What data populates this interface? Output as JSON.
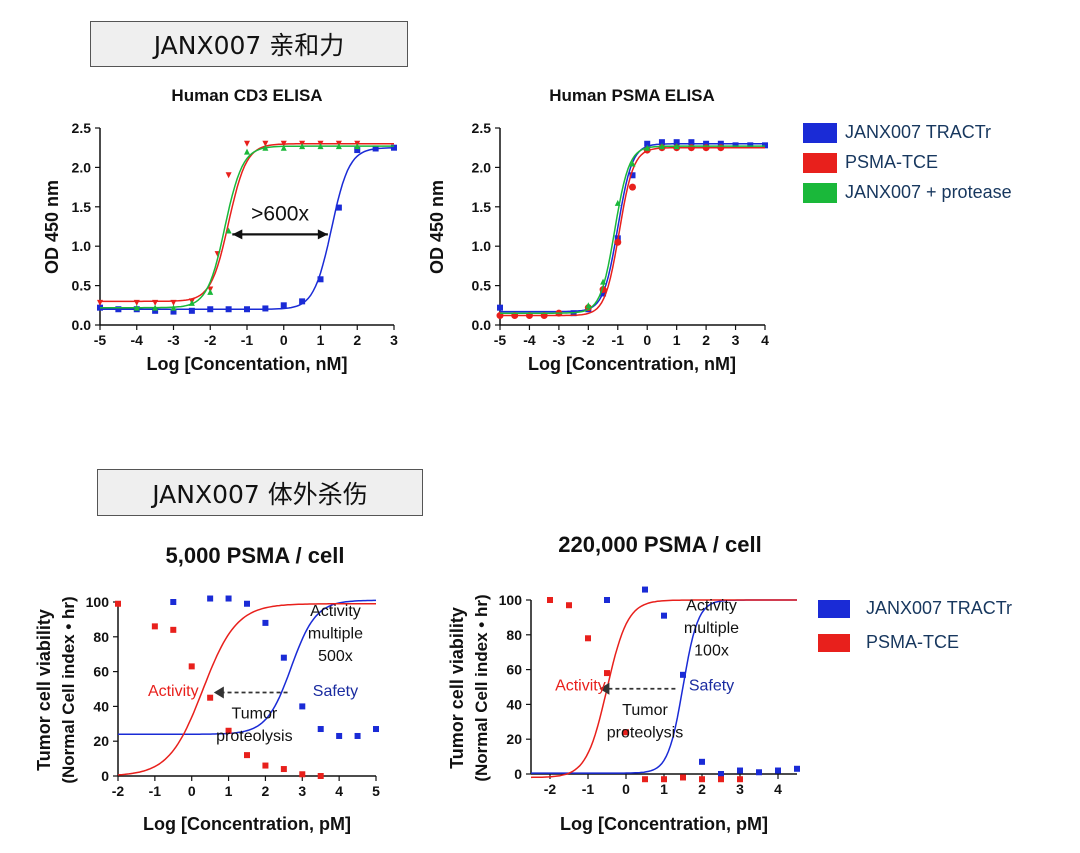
{
  "sections": [
    {
      "label": "JANX007 亲和力"
    },
    {
      "label": "JANX007 体外杀伤"
    }
  ],
  "colors": {
    "blue": "#1a2bd6",
    "red": "#e8201c",
    "green": "#1ab83a",
    "navy": "#1a2ba0"
  },
  "legend_top": [
    {
      "label": "JANX007 TRACTr",
      "color": "#1a2bd6"
    },
    {
      "label": "PSMA-TCE",
      "color": "#e8201c"
    },
    {
      "label": "JANX007 + protease",
      "color": "#1ab83a"
    }
  ],
  "legend_bottom": [
    {
      "label": "JANX007 TRACTr",
      "color": "#1a2bd6"
    },
    {
      "label": "PSMA-TCE",
      "color": "#e8201c"
    }
  ],
  "chart_data": [
    {
      "type": "line",
      "title": "Human CD3 ELISA",
      "xlabel": "Log [Concentation, nM]",
      "ylabel": "OD 450 nm",
      "xlim": [
        -5,
        3
      ],
      "ylim": [
        0,
        2.5
      ],
      "xticks": [
        "-5",
        "-4",
        "-3",
        "-2",
        "-1",
        "0",
        "1",
        "2",
        "3"
      ],
      "yticks": [
        "0.0",
        "0.5",
        "1.0",
        "1.5",
        "2.0",
        "2.5"
      ],
      "annotations": [
        {
          "text": ">600x",
          "x_from": -1.4,
          "x_to": 1.2,
          "y": 1.15
        }
      ],
      "series": [
        {
          "name": "JANX007 TRACTr",
          "color": "#1a2bd6",
          "marker": "square",
          "x": [
            -5,
            -4.5,
            -4,
            -3.5,
            -3,
            -2.5,
            -2,
            -1.5,
            -1,
            -0.5,
            0,
            0.5,
            1,
            1.5,
            2,
            2.5,
            3
          ],
          "y": [
            0.22,
            0.2,
            0.2,
            0.18,
            0.17,
            0.18,
            0.2,
            0.2,
            0.2,
            0.21,
            0.25,
            0.3,
            0.58,
            1.49,
            2.22,
            2.24,
            2.25
          ],
          "fit": {
            "bottom": 0.2,
            "top": 2.25,
            "ec50": 1.3,
            "hill": 1.8
          }
        },
        {
          "name": "PSMA-TCE",
          "color": "#e8201c",
          "marker": "triangle-down",
          "x": [
            -5,
            -4,
            -3.5,
            -3,
            -2.5,
            -2,
            -1.8,
            -1.5,
            -1,
            -0.5,
            0,
            0.5,
            1,
            1.5,
            2
          ],
          "y": [
            0.28,
            0.28,
            0.28,
            0.28,
            0.3,
            0.45,
            0.9,
            1.9,
            2.3,
            2.3,
            2.3,
            2.3,
            2.3,
            2.3,
            2.3
          ],
          "fit": {
            "bottom": 0.3,
            "top": 2.3,
            "ec50": -1.5,
            "hill": 1.8
          }
        },
        {
          "name": "JANX007 + protease",
          "color": "#1ab83a",
          "marker": "triangle-up",
          "x": [
            -4,
            -3.5,
            -3,
            -2.5,
            -2,
            -1.5,
            -1,
            -0.5,
            0,
            0.5,
            1,
            1.5,
            2
          ],
          "y": [
            0.22,
            0.22,
            0.22,
            0.28,
            0.42,
            1.2,
            2.2,
            2.25,
            2.25,
            2.27,
            2.27,
            2.27,
            2.27
          ],
          "fit": {
            "bottom": 0.22,
            "top": 2.27,
            "ec50": -1.6,
            "hill": 1.8
          }
        }
      ]
    },
    {
      "type": "line",
      "title": "Human PSMA ELISA",
      "xlabel": "Log [Concentration, nM]",
      "ylabel": "OD 450 nm",
      "xlim": [
        -5,
        4
      ],
      "ylim": [
        0,
        2.5
      ],
      "xticks": [
        "-5",
        "-4",
        "-3",
        "-2",
        "-1",
        "0",
        "1",
        "2",
        "3",
        "4"
      ],
      "yticks": [
        "0.0",
        "0.5",
        "1.0",
        "1.5",
        "2.0",
        "2.5"
      ],
      "series": [
        {
          "name": "JANX007 TRACTr",
          "color": "#1a2bd6",
          "marker": "square",
          "x": [
            -5,
            -2.5,
            -2,
            -1.5,
            -1,
            -0.5,
            0,
            0.5,
            1,
            1.5,
            2,
            2.5,
            3,
            3.5,
            4
          ],
          "y": [
            0.22,
            0.15,
            0.2,
            0.4,
            1.1,
            1.9,
            2.3,
            2.32,
            2.32,
            2.32,
            2.3,
            2.3,
            2.28,
            2.28,
            2.28
          ],
          "fit": {
            "bottom": 0.17,
            "top": 2.3,
            "ec50": -1.0,
            "hill": 1.8
          }
        },
        {
          "name": "PSMA-TCE",
          "color": "#e8201c",
          "marker": "circle",
          "x": [
            -5,
            -4.5,
            -4,
            -3.5,
            -3,
            -2,
            -1.5,
            -1,
            -0.5,
            0,
            0.5,
            1,
            1.5,
            2,
            2.5
          ],
          "y": [
            0.12,
            0.12,
            0.12,
            0.12,
            0.15,
            0.22,
            0.45,
            1.05,
            1.75,
            2.22,
            2.25,
            2.25,
            2.25,
            2.25,
            2.25
          ],
          "fit": {
            "bottom": 0.12,
            "top": 2.25,
            "ec50": -0.95,
            "hill": 1.8
          }
        },
        {
          "name": "JANX007 + protease",
          "color": "#1ab83a",
          "marker": "triangle-up",
          "x": [
            -2,
            -1.5,
            -1,
            -0.5,
            0,
            0.5,
            1
          ],
          "y": [
            0.25,
            0.55,
            1.55,
            2.05,
            2.25,
            2.27,
            2.27
          ],
          "fit": {
            "bottom": 0.15,
            "top": 2.27,
            "ec50": -1.1,
            "hill": 1.8
          }
        }
      ]
    },
    {
      "type": "line",
      "title": "5,000 PSMA / cell",
      "xlabel": "Log [Concentration, pM]",
      "ylabel": "Tumor cell viability",
      "ylabel2": "(Normal Cell index • hr)",
      "xlim": [
        -2,
        5
      ],
      "ylim": [
        0,
        100
      ],
      "xticks": [
        "-2",
        "-1",
        "0",
        "1",
        "2",
        "3",
        "4",
        "5"
      ],
      "yticks": [
        "0",
        "20",
        "40",
        "60",
        "80",
        "100"
      ],
      "annotations": [
        {
          "text": "Activity",
          "color": "#e8201c",
          "x": -0.5,
          "y": 46
        },
        {
          "text": "Safety",
          "color": "#1a2ba0",
          "x": 3.9,
          "y": 46
        },
        {
          "text": "Activity",
          "color": "#111",
          "x": 3.9,
          "y": 92
        },
        {
          "text": "multiple",
          "color": "#111",
          "x": 3.9,
          "y": 79
        },
        {
          "text": "500x",
          "color": "#111",
          "x": 3.9,
          "y": 66
        },
        {
          "text": "Tumor",
          "color": "#111",
          "x": 1.7,
          "y": 33
        },
        {
          "text": "proteolysis",
          "color": "#111",
          "x": 1.7,
          "y": 20
        }
      ],
      "arrow": {
        "x_from": 2.6,
        "x_to": 0.6,
        "y": 48
      },
      "series": [
        {
          "name": "JANX007 TRACTr",
          "color": "#1a2bd6",
          "marker": "square",
          "x": [
            -0.5,
            0.5,
            1,
            1.5,
            2,
            2.5,
            3,
            3.5,
            4,
            4.5,
            5
          ],
          "y": [
            100,
            102,
            102,
            99,
            88,
            68,
            40,
            27,
            23,
            23,
            27
          ],
          "fit": {
            "bottom": 24,
            "top": 101,
            "ec50": 2.7,
            "hill": 1.3
          }
        },
        {
          "name": "PSMA-TCE",
          "color": "#e8201c",
          "marker": "square",
          "x": [
            -2,
            -1,
            -0.5,
            0,
            0.5,
            1,
            1.5,
            2,
            2.5,
            3,
            3.5
          ],
          "y": [
            99,
            86,
            84,
            63,
            45,
            26,
            12,
            6,
            4,
            1,
            0
          ],
          "fit": {
            "bottom": 0,
            "top": 99,
            "ec50": 0.3,
            "hill": 0.95
          }
        }
      ]
    },
    {
      "type": "line",
      "title": "220,000 PSMA / cell",
      "xlabel": "Log [Concentration, pM]",
      "ylabel": "Tumor cell viability",
      "ylabel2": "(Normal Cell index • hr)",
      "xlim": [
        -2.5,
        4.5
      ],
      "ylim": [
        0,
        100
      ],
      "xticks": [
        "-2",
        "-1",
        "0",
        "1",
        "2",
        "3",
        "4"
      ],
      "yticks": [
        "0",
        "20",
        "40",
        "60",
        "80",
        "100"
      ],
      "annotations": [
        {
          "text": "Activity",
          "color": "#e8201c",
          "x": -1.2,
          "y": 48
        },
        {
          "text": "Safety",
          "color": "#1a2ba0",
          "x": 2.25,
          "y": 48
        },
        {
          "text": "Activity",
          "color": "#111",
          "x": 2.25,
          "y": 94
        },
        {
          "text": "multiple",
          "color": "#111",
          "x": 2.25,
          "y": 81
        },
        {
          "text": "100x",
          "color": "#111",
          "x": 2.25,
          "y": 68
        },
        {
          "text": "Tumor",
          "color": "#111",
          "x": 0.5,
          "y": 34
        },
        {
          "text": "proteolysis",
          "color": "#111",
          "x": 0.5,
          "y": 21
        }
      ],
      "arrow": {
        "x_from": 1.3,
        "x_to": -0.7,
        "y": 49
      },
      "series": [
        {
          "name": "JANX007 TRACTr",
          "color": "#1a2bd6",
          "marker": "square",
          "x": [
            -0.5,
            0.5,
            1,
            1.5,
            2,
            2.5,
            3,
            3.5,
            4,
            4.5
          ],
          "y": [
            100,
            106,
            91,
            57,
            7,
            0,
            2,
            1,
            2,
            3
          ],
          "fit": {
            "bottom": 0.5,
            "top": 100,
            "ec50": 1.5,
            "hill": 2.2
          }
        },
        {
          "name": "PSMA-TCE",
          "color": "#e8201c",
          "marker": "square",
          "x": [
            -2,
            -1.5,
            -1,
            -0.5,
            0,
            0.5,
            1,
            1.5,
            2,
            2.5,
            3
          ],
          "y": [
            100,
            97,
            78,
            58,
            24,
            -3,
            -3,
            -2,
            -3,
            -3,
            -3
          ],
          "fit": {
            "bottom": -2,
            "top": 100,
            "ec50": -0.5,
            "hill": 1.6
          }
        }
      ]
    }
  ]
}
